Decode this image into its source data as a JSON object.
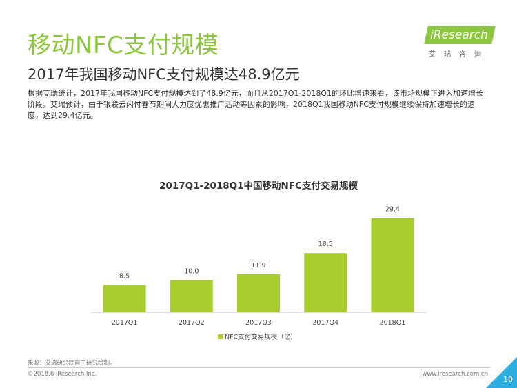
{
  "header": {
    "title": "移动NFC支付规模",
    "subtitle": "2017年我国移动NFC支付规模达48.9亿元"
  },
  "logo": {
    "wordmark": "iResearch",
    "chinese": "艾瑞咨询"
  },
  "body": {
    "paragraph": "根据艾瑞统计，2017年我国移动NFC支付规模达到了48.9亿元，而且从2017Q1-2018Q1的环比增速来看，该市场规模正进入加速增长阶段。艾瑞预计，由于银联云闪付春节期间大力度优惠推广活动等因素的影响，2018Q1我国移动NFC支付规模继续保持加速增长的速度，达到29.4亿元。"
  },
  "chart_data": {
    "type": "bar",
    "title": "2017Q1-2018Q1中国移动NFC支付交易规模",
    "categories": [
      "2017Q1",
      "2017Q2",
      "2017Q3",
      "2017Q4",
      "2018Q1"
    ],
    "series": [
      {
        "name": "NFC支付交易规模（亿）",
        "values": [
          8.5,
          10.0,
          11.9,
          18.5,
          29.4
        ]
      }
    ],
    "value_labels": [
      "8.5",
      "10.0",
      "11.9",
      "18.5",
      "29.4"
    ],
    "ylim": [
      0,
      33
    ],
    "grid": false,
    "legend_position": "bottom",
    "colors": {
      "bar": "#a6cc2e",
      "axis": "#bfbfbf"
    }
  },
  "footer": {
    "source": "来源：艾瑞研究院自主研究绘制。",
    "copyright": "©2018.6 iResearch Inc.",
    "website": "www.iresearch.com.cn",
    "page_number": "10"
  },
  "colors": {
    "accent": "#8cc63f",
    "corner": "#2eaee0"
  }
}
